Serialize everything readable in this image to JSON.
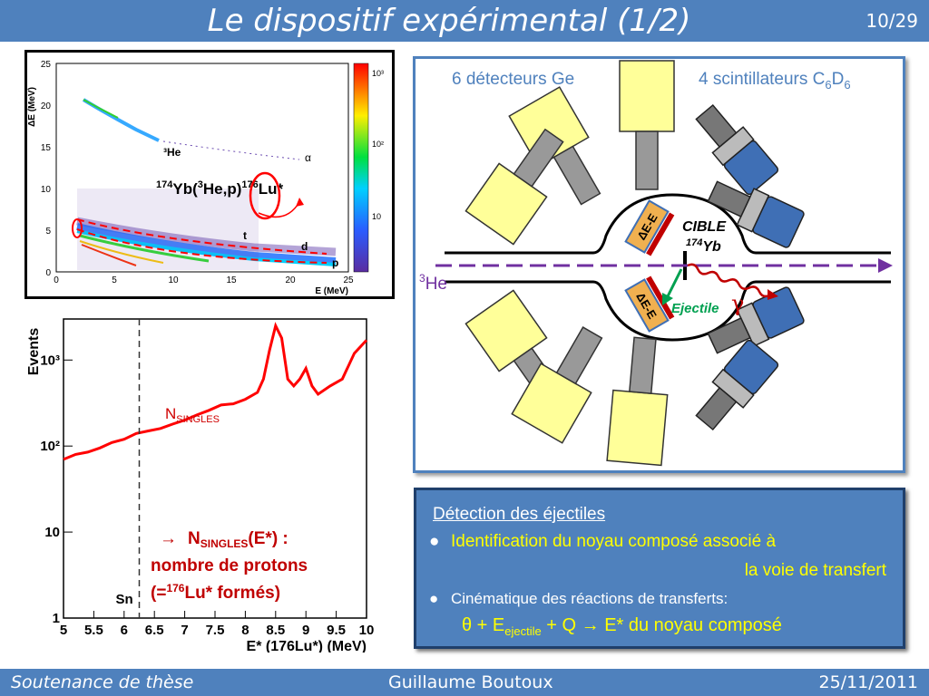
{
  "header": {
    "title": "Le dispositif expérimental (1/2)",
    "page": "10/29"
  },
  "footer": {
    "left": "Soutenance de thèse",
    "center": "Guillaume Boutoux",
    "right": "25/11/2011"
  },
  "plot1": {
    "y_axis_label": "ΔE (MeV)",
    "x_axis_label": "E (MeV)",
    "y_ticks": [
      "0",
      "5",
      "10",
      "15",
      "20",
      "25"
    ],
    "x_ticks": [
      "0",
      "5",
      "10",
      "15",
      "20",
      "25"
    ],
    "colorbar_ticks": [
      "10³",
      "10²",
      "10"
    ],
    "labels": {
      "he3": "³He",
      "alpha": "α",
      "t": "t",
      "d": "d",
      "p": "p"
    },
    "reaction": {
      "yb": "174",
      "text_a": "Yb(",
      "he": "3",
      "text_b": "He,p)",
      "lu": "176",
      "text_c": "Lu*"
    }
  },
  "chart_data": {
    "type": "line",
    "title": "",
    "xlabel": "E* (176Lu*) (MeV)",
    "ylabel": "Events",
    "xlim": [
      5,
      10
    ],
    "ylim": [
      1,
      3000
    ],
    "yscale": "log",
    "x_ticks": [
      "5",
      "5.5",
      "6",
      "6.5",
      "7",
      "7.5",
      "8",
      "8.5",
      "9",
      "9.5",
      "10"
    ],
    "y_ticks": [
      "1",
      "10",
      "10²",
      "10³"
    ],
    "series": [
      {
        "name": "N_SINGLES",
        "color": "#ff0000",
        "x": [
          5.0,
          5.2,
          5.4,
          5.6,
          5.8,
          6.0,
          6.2,
          6.4,
          6.6,
          6.8,
          7.0,
          7.2,
          7.4,
          7.6,
          7.8,
          8.0,
          8.2,
          8.3,
          8.4,
          8.5,
          8.6,
          8.7,
          8.8,
          8.9,
          9.0,
          9.1,
          9.2,
          9.4,
          9.6,
          9.8,
          10.0
        ],
        "y": [
          70,
          80,
          85,
          95,
          110,
          120,
          140,
          150,
          160,
          180,
          200,
          230,
          260,
          300,
          310,
          350,
          420,
          600,
          1300,
          2500,
          1800,
          600,
          500,
          600,
          800,
          500,
          400,
          500,
          600,
          1200,
          1700
        ]
      }
    ],
    "sn_line_x": 6.25,
    "sn_label": "Sn"
  },
  "plot2_text": {
    "nsingles": "N",
    "nsingles_sub": "SINGLES",
    "note_arrow": "→",
    "note_n": "N",
    "note_sub": "SINGLES",
    "note_rest": "(E*) :",
    "note_line2": "nombre de protons",
    "note_line3_a": "(=",
    "note_line3_sup": "176",
    "note_line3_b": "Lu* formés)"
  },
  "diagram": {
    "ge_label": "6 détecteurs Ge",
    "scint_label_a": "4 scintillateurs C",
    "scint_sub1": "6",
    "scint_label_b": "D",
    "scint_sub2": "6",
    "beam_sup": "3",
    "beam_label": "He",
    "target_label": "CIBLE",
    "target_sup": "174",
    "target_el": "Yb",
    "dee_label": "ΔE-E",
    "ejectile_label": "Ejectile",
    "gamma_label": "γ",
    "colors": {
      "ge": "#ffff99",
      "scint_blue": "#3f6fb5",
      "beam": "#7030a0",
      "gamma": "#c00000",
      "ejectile": "#00a050"
    }
  },
  "infobox": {
    "title": "Détection des éjectiles",
    "bullet1_line1": "Identification du noyau composé associé à",
    "bullet1_line2": "la voie de transfert",
    "bullet2": "Cinématique des réactions de transferts:",
    "formula_a": "θ + E",
    "formula_sub": "ejectile",
    "formula_b": " + Q → E* du noyau composé"
  }
}
